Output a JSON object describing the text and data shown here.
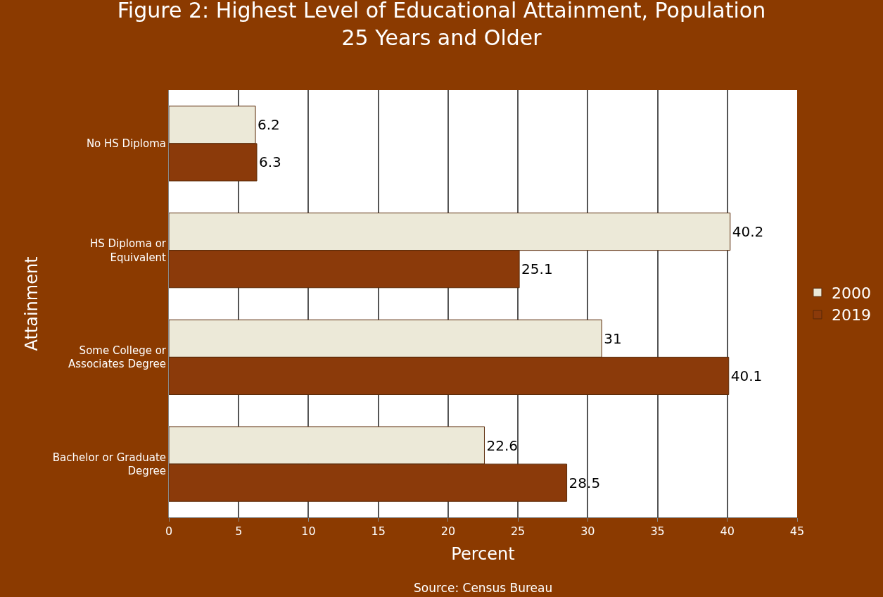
{
  "chart_data": {
    "type": "bar",
    "orientation": "horizontal",
    "title": "Figure 2: Highest Level of Educational Attainment, Population 25 Years and Older",
    "xlabel": "Percent",
    "ylabel": "Attainment",
    "categories": [
      "No HS Diploma",
      "HS Diploma or Equivalent",
      "Some College or Associates Degree",
      "Bachelor or Graduate Degree"
    ],
    "series": [
      {
        "name": "2000",
        "color": "#ece9d8",
        "values": [
          6.2,
          40.2,
          31,
          22.6
        ]
      },
      {
        "name": "2019",
        "color": "#8b3a0a",
        "values": [
          6.3,
          25.1,
          40.1,
          28.5
        ]
      }
    ],
    "xlim": [
      0,
      45
    ],
    "xticks": [
      0,
      5,
      10,
      15,
      20,
      25,
      30,
      35,
      40,
      45
    ],
    "grid": "x",
    "legend": "right",
    "data_labels": true,
    "annotations": [
      "Source: Census Bureau"
    ]
  }
}
